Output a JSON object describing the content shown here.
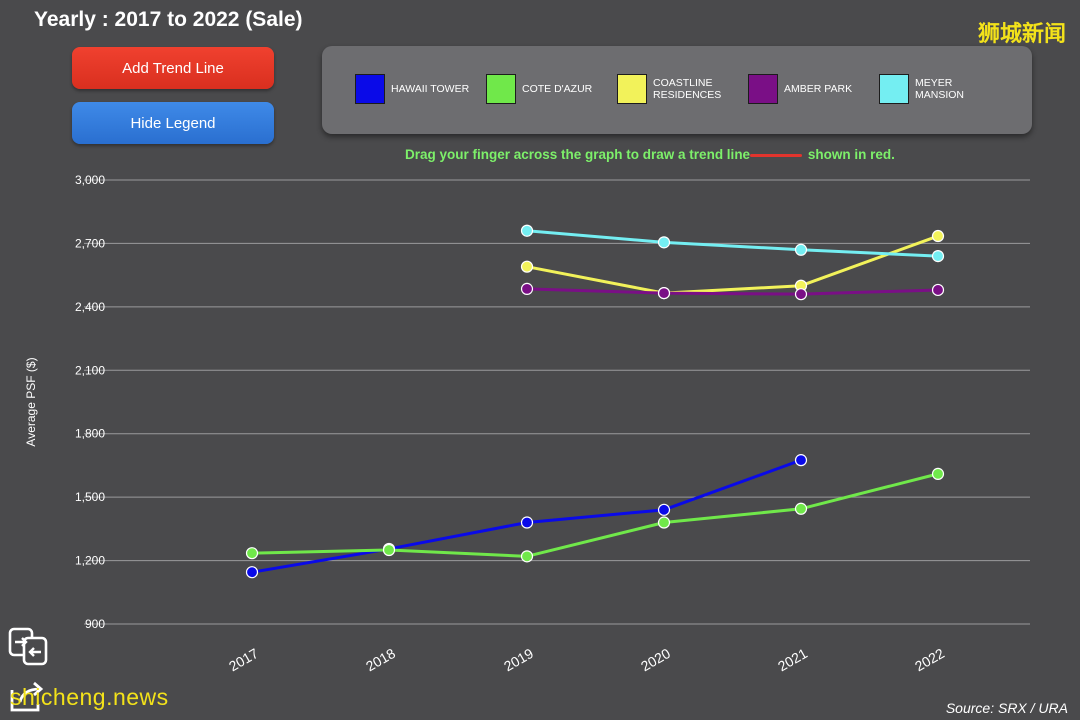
{
  "header": {
    "title": "Yearly : 2017 to 2022 (Sale)",
    "watermark": "狮城新闻"
  },
  "buttons": {
    "add_trend_line": "Add Trend Line",
    "hide_legend": "Hide Legend"
  },
  "instruction": {
    "before": "Drag your finger across the graph to draw a trend line",
    "after": "shown in red."
  },
  "footer": {
    "source": "Source: SRX / URA",
    "watermark": "shicheng.news"
  },
  "colors": {
    "trend_button": "#e53a28",
    "legend_button": "#3580de",
    "trend_dash": "#e2342d"
  },
  "icons": [
    "translate-icon",
    "share-icon"
  ],
  "chart_data": {
    "type": "line",
    "title": "Yearly : 2017 to 2022 (Sale)",
    "xlabel": "",
    "ylabel": "Average PSF ($)",
    "categories": [
      "2017",
      "2018",
      "2019",
      "2020",
      "2021",
      "2022"
    ],
    "ylim": [
      900,
      3000
    ],
    "yticks": [
      900,
      1200,
      1500,
      1800,
      2100,
      2400,
      2700,
      3000
    ],
    "ytick_labels": [
      "900",
      "1,200",
      "1,500",
      "1,800",
      "2,100",
      "2,400",
      "2,700",
      "3,000"
    ],
    "grid": true,
    "legend_position": "top",
    "series": [
      {
        "name": "HAWAII TOWER",
        "color": "#0a0ae8",
        "values": [
          1145,
          1255,
          1380,
          1440,
          1675,
          null
        ]
      },
      {
        "name": "COTE D'AZUR",
        "color": "#70e84a",
        "values": [
          1235,
          1250,
          1220,
          1380,
          1445,
          1610
        ]
      },
      {
        "name": "COASTLINE RESIDENCES",
        "color": "#f2f25a",
        "values": [
          null,
          null,
          2590,
          2465,
          2500,
          2735
        ]
      },
      {
        "name": "AMBER PARK",
        "color": "#7a0f86",
        "values": [
          null,
          null,
          2485,
          2465,
          2460,
          2480
        ]
      },
      {
        "name": "MEYER MANSION",
        "color": "#74eef2",
        "values": [
          null,
          null,
          2760,
          2705,
          2670,
          2640
        ]
      }
    ]
  }
}
